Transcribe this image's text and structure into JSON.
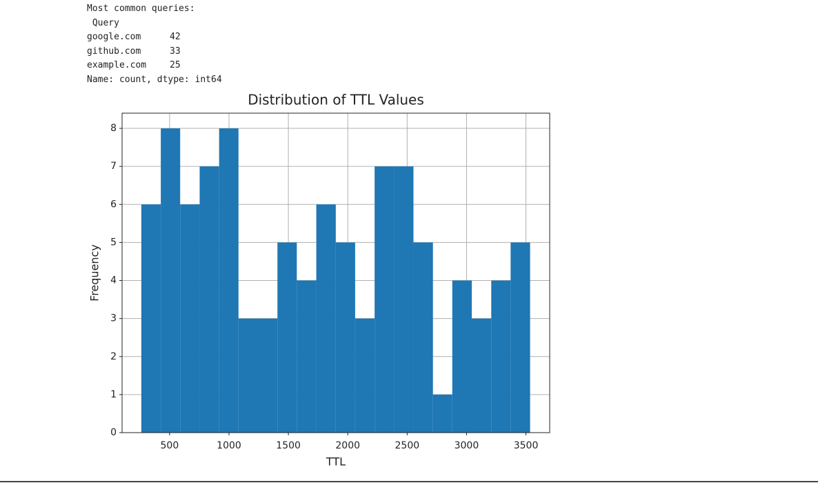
{
  "output": {
    "heading": "Most common queries:",
    "index_name": " Query",
    "rows": [
      {
        "label": "google.com",
        "value": 42
      },
      {
        "label": "github.com",
        "value": 33
      },
      {
        "label": "example.com",
        "value": 25
      }
    ],
    "footer": "Name: count, dtype: int64"
  },
  "chart_data": {
    "type": "histogram",
    "title": "Distribution of TTL Values",
    "x_label": "TTL",
    "y_label": "Frequency",
    "bins": [
      262,
      426,
      589,
      753,
      917,
      1080,
      1244,
      1408,
      1571,
      1735,
      1899,
      2062,
      2226,
      2390,
      2553,
      2717,
      2880,
      3044,
      3208,
      3371,
      3535
    ],
    "values": [
      6,
      8,
      6,
      7,
      8,
      3,
      3,
      5,
      4,
      6,
      5,
      3,
      7,
      7,
      5,
      1,
      4,
      3,
      4,
      5
    ],
    "color": "#1f77b4",
    "grid": true,
    "xlim": [
      100,
      3700
    ],
    "xticks": [
      500,
      1000,
      1500,
      2000,
      2500,
      3000,
      3500
    ],
    "ylim": [
      0,
      8.4
    ],
    "yticks": [
      0,
      1,
      2,
      3,
      4,
      5,
      6,
      7,
      8
    ]
  }
}
